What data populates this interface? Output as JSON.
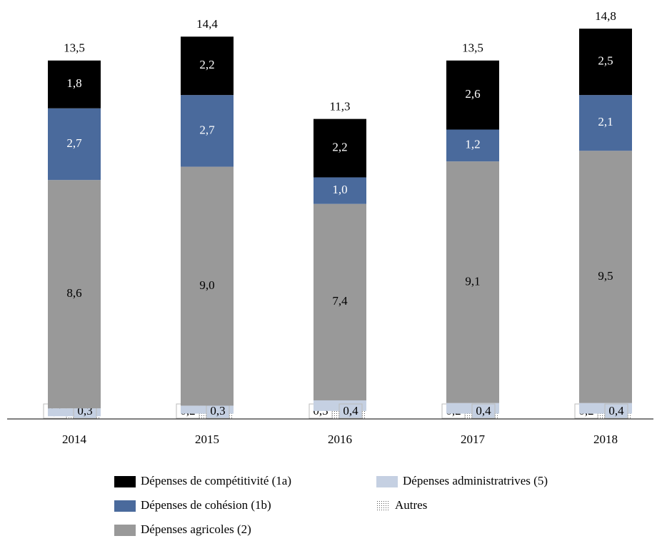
{
  "chart_data": {
    "type": "stacked_bar",
    "categories": [
      "2014",
      "2015",
      "2016",
      "2017",
      "2018"
    ],
    "ylim": [
      0,
      15
    ],
    "series": [
      {
        "name": "Autres",
        "color": "dotted",
        "values": [
          0.1,
          0.2,
          0.3,
          0.2,
          0.2
        ],
        "value_labels": [
          "0,1",
          "0,2",
          "0,3",
          "0,2",
          "0,2"
        ]
      },
      {
        "name": "Dépenses administratrives (5)",
        "color": "#c5d0e2",
        "values": [
          0.3,
          0.3,
          0.4,
          0.4,
          0.4
        ],
        "value_labels": [
          "0,3",
          "0,3",
          "0,4",
          "0,4",
          "0,4"
        ]
      },
      {
        "name": "Dépenses agricoles (2)",
        "color": "#999999",
        "values": [
          8.6,
          9.0,
          7.4,
          9.1,
          9.5
        ],
        "value_labels": [
          "8,6",
          "9,0",
          "7,4",
          "9,1",
          "9,5"
        ]
      },
      {
        "name": "Dépenses de cohésion (1b)",
        "color": "#4a6a9c",
        "values": [
          2.7,
          2.7,
          1.0,
          1.2,
          2.1
        ],
        "value_labels": [
          "2,7",
          "2,7",
          "1,0",
          "1,2",
          "2,1"
        ]
      },
      {
        "name": "Dépenses de compétitivité (1a)",
        "color": "#000000",
        "values": [
          1.8,
          2.2,
          2.2,
          2.6,
          2.5
        ],
        "value_labels": [
          "1,8",
          "2,2",
          "2,2",
          "2,6",
          "2,5"
        ]
      }
    ],
    "totals": {
      "values": [
        13.5,
        14.4,
        11.3,
        13.5,
        14.8
      ],
      "value_labels": [
        "13,5",
        "14,4",
        "11,3",
        "13,5",
        "14,8"
      ]
    }
  }
}
